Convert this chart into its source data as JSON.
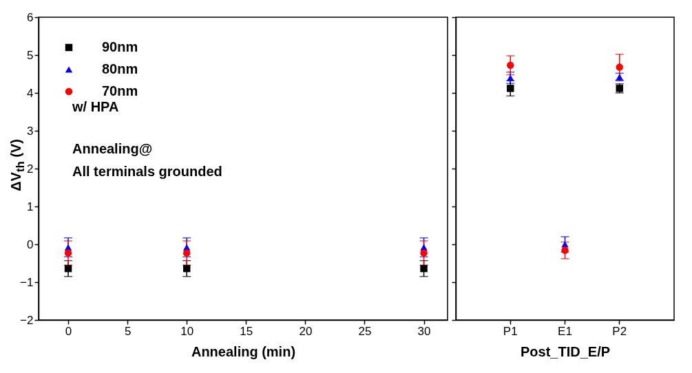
{
  "chart_data": [
    {
      "type": "scatter",
      "xlabel": "Annealing (min)",
      "ylabel": "ΔV$_{th}$ (V)",
      "x": [
        0,
        10,
        30
      ],
      "xlim": [
        -2.5,
        32
      ],
      "xticks": [
        0,
        5,
        10,
        15,
        20,
        25,
        30
      ],
      "ylim": [
        -2,
        6
      ],
      "yticks": [
        -2,
        -1,
        0,
        1,
        2,
        3,
        4,
        5,
        6
      ],
      "grid": false,
      "legend": "top left",
      "annotations": [
        "w/ HPA",
        "Annealing@",
        "All terminals grounded"
      ],
      "series": [
        {
          "name": "90nm",
          "color": "#000000",
          "marker": "square",
          "values": [
            -0.64,
            -0.64,
            -0.64
          ],
          "errors": [
            0.21,
            0.21,
            0.21
          ]
        },
        {
          "name": "80nm",
          "color": "#0000ff",
          "marker": "triangle",
          "values": [
            -0.08,
            -0.08,
            -0.08
          ],
          "errors": [
            0.25,
            0.25,
            0.25
          ]
        },
        {
          "name": "70nm",
          "color": "#ff0000",
          "marker": "circle",
          "values": [
            -0.23,
            -0.23,
            -0.23
          ],
          "errors": [
            0.32,
            0.32,
            0.32
          ]
        }
      ]
    },
    {
      "type": "scatter",
      "xlabel": "Post_TID_E/P",
      "categories": [
        "P1",
        "E1",
        "P2"
      ],
      "ylim": [
        -2,
        6
      ],
      "yticks": [
        {
          "value": -2,
          "label": null
        },
        {
          "value": -1,
          "label": null
        },
        {
          "value": 0,
          "label": null
        },
        {
          "value": 1,
          "label": null
        },
        {
          "value": 2,
          "label": null
        },
        {
          "value": 3,
          "label": null
        },
        {
          "value": 4,
          "label": null
        },
        {
          "value": 5,
          "label": null
        },
        {
          "value": 6,
          "label": null
        }
      ],
      "grid": false,
      "tick_labels": "x",
      "series": [
        {
          "color": "#000000",
          "marker": "square",
          "values": [
            4.12,
            null,
            4.12
          ],
          "errors": [
            0.2,
            null,
            0.12
          ]
        },
        {
          "color": "#0000ff",
          "marker": "triangle",
          "values": [
            4.4,
            0.0,
            4.42
          ],
          "errors": [
            0.15,
            0.2,
            0.1
          ]
        },
        {
          "color": "#ff0000",
          "marker": "circle",
          "values": [
            4.73,
            -0.16,
            4.68
          ],
          "errors": [
            0.25,
            0.22,
            0.34
          ]
        }
      ]
    }
  ]
}
